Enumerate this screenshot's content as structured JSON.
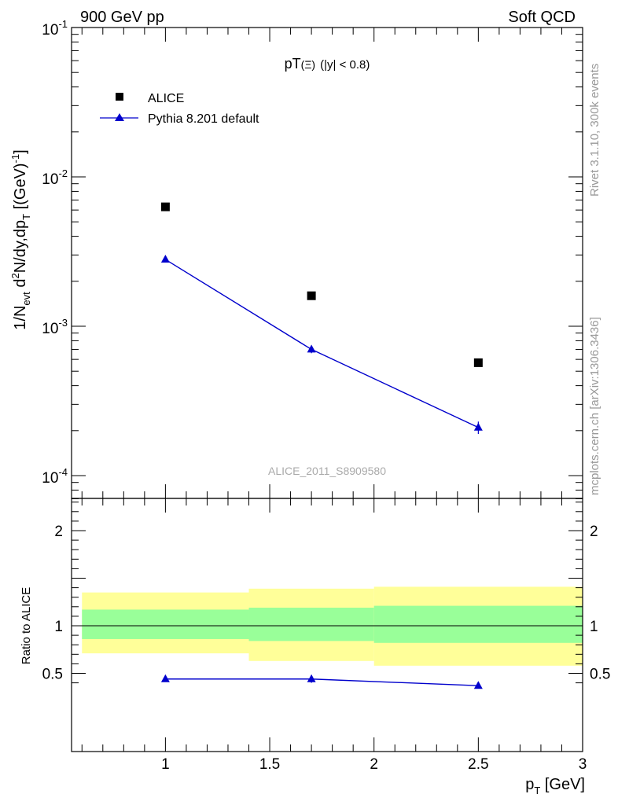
{
  "header": {
    "left": "900 GeV pp",
    "right": "Soft QCD"
  },
  "side_text": {
    "top": "Rivet 3.1.10,  300k events",
    "bottom": "mcplots.cern.ch [arXiv:1306.3436]"
  },
  "colors": {
    "alice": "#000000",
    "pythia": "#0000cc",
    "band_outer": "#ffff99",
    "band_inner": "#99ff99"
  },
  "chart_data": [
    {
      "type": "scatter",
      "title_parts": {
        "main": "pT",
        "symbol": "(Ξ)",
        "cut": "(|y| < 0.8)"
      },
      "xlabel": "p_T [GeV]",
      "ylabel": "1/N_evt d²N/dy,dp_T [(GeV)⁻¹]",
      "yscale": "log",
      "xlim": [
        0.55,
        3.0
      ],
      "ylim": [
        8e-05,
        0.1
      ],
      "yticks": [
        {
          "value": 0.1,
          "base": "10",
          "exp": "-1"
        },
        {
          "value": 0.01,
          "base": "10",
          "exp": "-2"
        },
        {
          "value": 0.001,
          "base": "10",
          "exp": "-3"
        },
        {
          "value": 0.0001,
          "base": "10",
          "exp": "-4"
        }
      ],
      "watermark": "ALICE_2011_S8909580",
      "legend": {
        "placement": "top-left",
        "entries": [
          "ALICE",
          "Pythia 8.201 default"
        ]
      },
      "series": [
        {
          "name": "ALICE",
          "marker": "square",
          "x": [
            1.0,
            1.7,
            2.5
          ],
          "y": [
            0.0063,
            0.0016,
            0.00057
          ]
        },
        {
          "name": "Pythia 8.201 default",
          "marker": "triangle",
          "line": true,
          "x": [
            1.0,
            1.7,
            2.5
          ],
          "y": [
            0.0028,
            0.0007,
            0.00021
          ],
          "yerr": [
            5e-05,
            4e-05,
            2e-05
          ]
        }
      ]
    },
    {
      "type": "line",
      "ylabel": "Ratio to ALICE",
      "xlabel": "p_T [GeV]",
      "xlim": [
        0.55,
        3.0
      ],
      "ylim": [
        0.35,
        2.3
      ],
      "yticks": [
        {
          "value": 0.5,
          "label": "0.5"
        },
        {
          "value": 1,
          "label": "1"
        },
        {
          "value": 2,
          "label": "2"
        }
      ],
      "xticks": [
        {
          "value": 1,
          "label": "1"
        },
        {
          "value": 1.5,
          "label": "1.5"
        },
        {
          "value": 2,
          "label": "2"
        },
        {
          "value": 2.5,
          "label": "2.5"
        },
        {
          "value": 3,
          "label": "3"
        }
      ],
      "bands": [
        {
          "x0": 0.6,
          "x1": 1.4,
          "outer": [
            0.71,
            1.35
          ],
          "inner": [
            0.86,
            1.17
          ]
        },
        {
          "x0": 1.4,
          "x1": 2.0,
          "outer": [
            0.63,
            1.39
          ],
          "inner": [
            0.84,
            1.19
          ]
        },
        {
          "x0": 2.0,
          "x1": 3.0,
          "outer": [
            0.58,
            1.41
          ],
          "inner": [
            0.82,
            1.21
          ]
        }
      ],
      "series": [
        {
          "name": "Pythia 8.201 default",
          "x": [
            1.0,
            1.7,
            2.5
          ],
          "y": [
            0.44,
            0.44,
            0.37
          ],
          "yerr": [
            0.02,
            0.04,
            0.02
          ]
        }
      ]
    }
  ]
}
